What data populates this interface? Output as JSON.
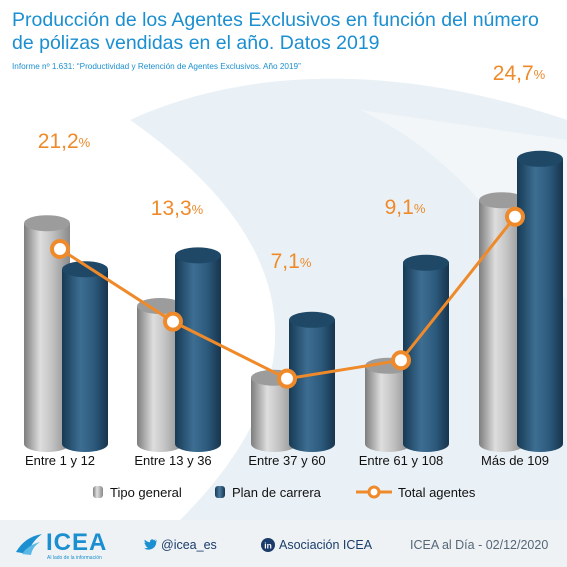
{
  "header": {
    "title": "Producción de los Agentes Exclusivos en función del número de pólizas vendidas en el año. Datos 2019",
    "subtitle": "Informe nº 1.631: “Productividad y Retención de Agentes Exclusivos. Año 2019”"
  },
  "chart_data": {
    "type": "bar",
    "categories": [
      "Entre 1 y 12",
      "Entre 13 y 36",
      "Entre 37 y 60",
      "Entre 61 y 108",
      "Más de 109"
    ],
    "series": [
      {
        "name": "Tipo general",
        "values": [
          24.0,
          15.0,
          7.2,
          8.5,
          26.5
        ],
        "color": "#b8b8b8"
      },
      {
        "name": "Plan de carrera",
        "values": [
          19.0,
          20.5,
          13.5,
          19.7,
          31.0
        ],
        "color": "#2a5878"
      },
      {
        "name": "Total agentes",
        "values": [
          21.2,
          13.3,
          7.1,
          9.1,
          24.7
        ],
        "labels": [
          "21,2",
          "13,3",
          "7,1",
          "9,1",
          "24,7"
        ],
        "unit": "%",
        "color": "#ef8a2b"
      }
    ],
    "ylim": [
      0,
      35
    ],
    "grid": false,
    "legend_position": "bottom"
  },
  "footer": {
    "brand": "ICEA",
    "brand_tagline": "Al lado de la información",
    "twitter": "@icea_es",
    "linkedin": "Asociación ICEA",
    "date_note": "ICEA al Día - 02/12/2020"
  },
  "icons": {
    "twitter": "twitter-bird-icon",
    "linkedin": "linkedin-icon",
    "logo": "icea-logo-icon"
  }
}
